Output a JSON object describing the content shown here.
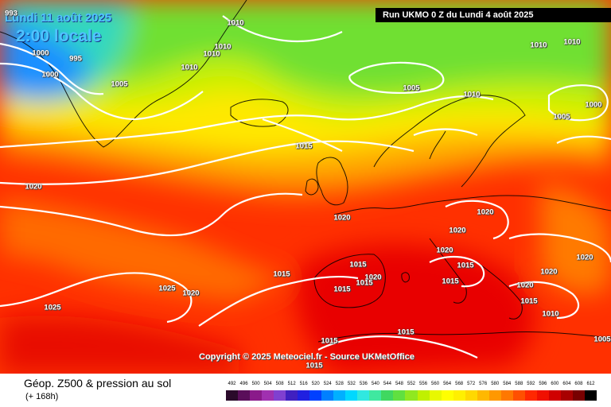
{
  "header": {
    "date_line": "Lundi 11 août 2025",
    "time_line": "2:00 locale",
    "run_info": "Run UKMO 0 Z du Lundi 4 août 2025"
  },
  "copyright": "Copyright © 2025 Meteociel.fr - Source UKMetOffice",
  "footer": {
    "title": "Géop. Z500 & pression au sol",
    "subtitle": "(+ 168h)"
  },
  "isobar_labels": {
    "l_993": "993",
    "l_1010a": "1010",
    "l_1010b": "1010",
    "l_1010c": "1010",
    "l_1010d": "1010",
    "l_1000a": "1000",
    "l_995": "995",
    "l_1000b": "1000",
    "l_1005a": "1005",
    "l_1005b": "1005",
    "l_1010e": "1010",
    "l_1010f": "1010",
    "l_1010g": "1010",
    "l_1000c": "1000",
    "l_1005c": "1005",
    "l_1015a": "1015",
    "l_1020a": "1020",
    "l_1020b": "1020",
    "l_1020c": "1020",
    "l_1020d": "1020",
    "l_1020e": "1020",
    "l_1015b": "1015",
    "l_1015c": "1015",
    "l_1015d": "1015",
    "l_1020f": "1020",
    "l_1015e": "1015",
    "l_1015f": "1015",
    "l_1015g": "1015",
    "l_1025a": "1025",
    "l_1020g": "1020",
    "l_1025b": "1025",
    "l_1015h": "1015",
    "l_1015i": "1015",
    "l_1015j": "1015",
    "l_1020h": "1020",
    "l_1020i": "1020",
    "l_1015k": "1015",
    "l_1020j": "1020",
    "l_1010h": "1010",
    "l_1005d": "1005"
  },
  "scale": {
    "labels": [
      "492",
      "496",
      "500",
      "504",
      "508",
      "512",
      "516",
      "520",
      "524",
      "528",
      "532",
      "536",
      "540",
      "544",
      "548",
      "552",
      "556",
      "560",
      "564",
      "568",
      "572",
      "576",
      "580",
      "584",
      "588",
      "592",
      "596",
      "600",
      "604",
      "608",
      "612"
    ],
    "colors": [
      "#2a0a2a",
      "#5a0e5a",
      "#8a1a8a",
      "#a030b0",
      "#8040d0",
      "#4020c0",
      "#2020e0",
      "#0040ff",
      "#0080ff",
      "#00b0ff",
      "#00d8ff",
      "#30e8e0",
      "#40e8a0",
      "#40d860",
      "#60e040",
      "#90e820",
      "#c0f000",
      "#e8f800",
      "#ffff00",
      "#fff000",
      "#ffd800",
      "#ffb800",
      "#ff9800",
      "#ff7800",
      "#ff5000",
      "#ff2800",
      "#f01000",
      "#d00000",
      "#a80000",
      "#780000",
      "#000000"
    ]
  }
}
